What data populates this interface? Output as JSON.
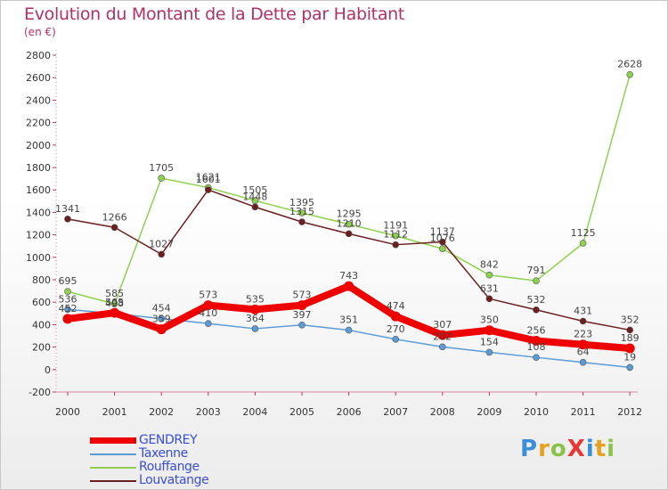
{
  "header": {
    "title": "Evolution du Montant de la Dette par Habitant",
    "unit": "(en €)"
  },
  "logo": {
    "text": "ProXiti",
    "letter_colors": [
      "#3a8fd8",
      "#e8a020",
      "#8bc34a",
      "#e53935",
      "#3a8fd8",
      "#e8a020",
      "#8bc34a"
    ]
  },
  "chart_data": {
    "type": "line",
    "title": "Evolution du Montant de la Dette par Habitant",
    "subtitle": "(en €)",
    "x": [
      "2000",
      "2001",
      "2002",
      "2003",
      "2004",
      "2005",
      "2006",
      "2007",
      "2008",
      "2009",
      "2010",
      "2011",
      "2012"
    ],
    "yticks": [
      "-200",
      "0",
      "200",
      "400",
      "600",
      "800",
      "1000",
      "1200",
      "1400",
      "1600",
      "1800",
      "2000",
      "2200",
      "2400",
      "2600",
      "2800"
    ],
    "ylim": [
      -200,
      2800
    ],
    "grid": false,
    "legend_position": "bottom-left",
    "series": [
      {
        "name": "GENDREY",
        "color": "#ee0000",
        "values": [
          452,
          505,
          359,
          573,
          535,
          573,
          743,
          474,
          307,
          350,
          256,
          223,
          189
        ],
        "labels": [
          "452",
          "505",
          "359",
          "573",
          "535",
          "573",
          "743",
          "474",
          "307",
          "350",
          "256",
          "223",
          "189"
        ]
      },
      {
        "name": "Taxenne",
        "color": "#5b9bd5",
        "values": [
          536,
          498,
          454,
          410,
          364,
          397,
          351,
          270,
          202,
          154,
          108,
          64,
          19
        ],
        "labels": [
          "536",
          "498",
          "454",
          "410",
          "364",
          "397",
          "351",
          "270",
          "202",
          "154",
          "108",
          "64",
          "19"
        ]
      },
      {
        "name": "Rouffange",
        "color": "#8fd14f",
        "values": [
          695,
          585,
          1705,
          1621,
          1505,
          1395,
          1295,
          1191,
          1076,
          842,
          791,
          1125,
          2628
        ],
        "labels": [
          "695",
          "585",
          "1705",
          "1621",
          "1505",
          "1395",
          "1295",
          "1191",
          "1076",
          "842",
          "791",
          "1125",
          "2628"
        ]
      },
      {
        "name": "Louvatange",
        "color": "#6b1f1f",
        "values": [
          1341,
          1266,
          1027,
          1601,
          1448,
          1315,
          1210,
          1112,
          1137,
          631,
          532,
          431,
          352
        ],
        "labels": [
          "1341",
          "1266",
          "1027",
          "1601",
          "1448",
          "1315",
          "1210",
          "1112",
          "1137",
          "631",
          "532",
          "431",
          "352"
        ]
      }
    ]
  }
}
